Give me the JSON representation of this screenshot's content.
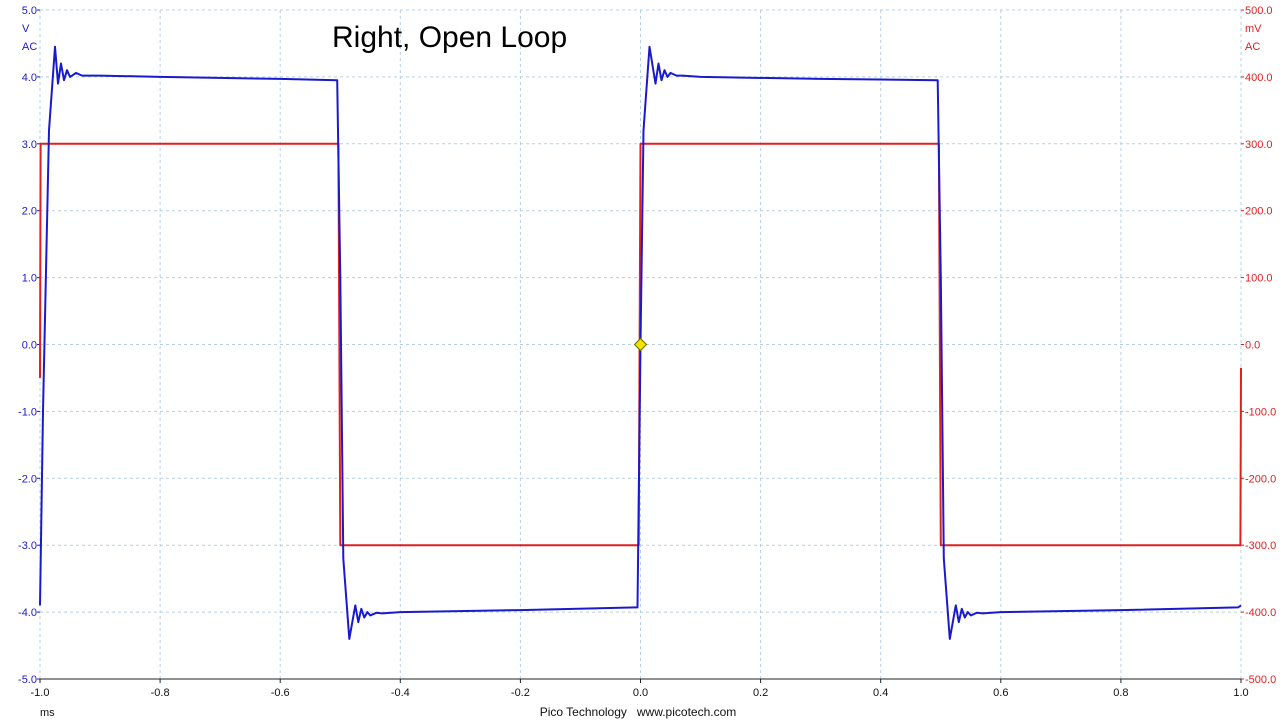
{
  "chart_data": {
    "type": "line",
    "title": "Right, Open Loop",
    "footer": "Pico Technology   www.picotech.com",
    "x_axis": {
      "unit": "ms",
      "range": [
        -1.0,
        1.0
      ],
      "ticks": [
        "-1.0",
        "-0.8",
        "-0.6",
        "-0.4",
        "-0.2",
        "0.0",
        "0.2",
        "0.4",
        "0.6",
        "0.8",
        "1.0"
      ]
    },
    "y_left": {
      "unit": "V",
      "coupling": "AC",
      "range": [
        -5.0,
        5.0
      ],
      "ticks": [
        "5.0",
        "4.0",
        "3.0",
        "2.0",
        "1.0",
        "0.0",
        "-1.0",
        "-2.0",
        "-3.0",
        "-4.0",
        "-5.0"
      ],
      "color": "#1a1acc"
    },
    "y_right": {
      "unit": "mV",
      "coupling": "AC",
      "range": [
        -500.0,
        500.0
      ],
      "ticks": [
        "500.0",
        "400.0",
        "300.0",
        "200.0",
        "100.0",
        "0.0",
        "-100.0",
        "-200.0",
        "-300.0",
        "-400.0",
        "-500.0"
      ],
      "color": "#e02020"
    },
    "grid": true,
    "trigger_marker": {
      "x": 0.0,
      "y": 0.0,
      "color": "#f2e600"
    },
    "series": [
      {
        "axis": "left",
        "color": "#1a1acc",
        "x": [
          -1.0,
          -0.995,
          -0.985,
          -0.975,
          -0.97,
          -0.965,
          -0.96,
          -0.955,
          -0.95,
          -0.94,
          -0.93,
          -0.9,
          -0.8,
          -0.6,
          -0.505,
          -0.5,
          -0.495,
          -0.485,
          -0.475,
          -0.47,
          -0.465,
          -0.46,
          -0.455,
          -0.45,
          -0.44,
          -0.43,
          -0.4,
          -0.2,
          -0.005,
          0.0,
          0.005,
          0.015,
          0.025,
          0.03,
          0.035,
          0.04,
          0.045,
          0.05,
          0.06,
          0.07,
          0.1,
          0.3,
          0.495,
          0.5,
          0.505,
          0.515,
          0.525,
          0.53,
          0.535,
          0.54,
          0.545,
          0.55,
          0.56,
          0.57,
          0.6,
          0.8,
          0.995,
          1.0
        ],
        "y": [
          -3.9,
          -1.0,
          3.2,
          4.45,
          3.9,
          4.2,
          3.95,
          4.1,
          4.0,
          4.06,
          4.02,
          4.02,
          4.0,
          3.97,
          3.95,
          1.0,
          -3.2,
          -4.4,
          -3.9,
          -4.15,
          -3.95,
          -4.08,
          -4.0,
          -4.05,
          -4.01,
          -4.02,
          -4.0,
          -3.97,
          -3.93,
          0.0,
          3.2,
          4.45,
          3.9,
          4.2,
          3.95,
          4.1,
          4.0,
          4.06,
          4.02,
          4.02,
          4.0,
          3.97,
          3.95,
          1.0,
          -3.2,
          -4.4,
          -3.9,
          -4.15,
          -3.95,
          -4.08,
          -4.0,
          -4.05,
          -4.01,
          -4.02,
          -4.0,
          -3.97,
          -3.93,
          -3.9
        ]
      },
      {
        "axis": "right",
        "color": "#e02020",
        "x": [
          -1.0,
          -0.999,
          -0.998,
          -0.6,
          -0.503,
          -0.5,
          -0.499,
          -0.2,
          -0.003,
          0.0,
          0.001,
          0.3,
          0.497,
          0.5,
          0.501,
          0.8,
          0.999,
          1.0
        ],
        "y": [
          -50.0,
          300.0,
          300.0,
          300.0,
          300.0,
          -300.0,
          -300.0,
          -300.0,
          -300.0,
          300.0,
          300.0,
          300.0,
          300.0,
          -300.0,
          -300.0,
          -300.0,
          -300.0,
          -35.0
        ]
      }
    ]
  }
}
